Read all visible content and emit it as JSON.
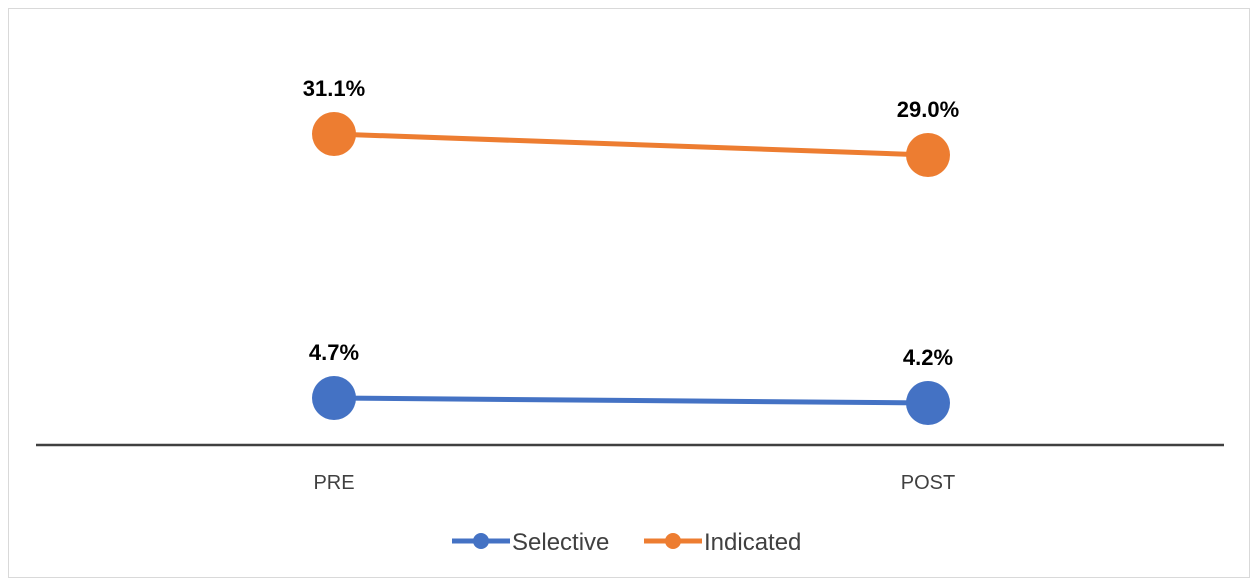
{
  "chart_data": {
    "type": "line",
    "title": "",
    "xlabel": "",
    "ylabel": "",
    "categories": [
      "PRE",
      "POST"
    ],
    "ylim": [
      0,
      40
    ],
    "grid": false,
    "legend_position": "bottom",
    "series": [
      {
        "name": "Selective",
        "color": "#4472c4",
        "values": [
          4.7,
          4.2
        ],
        "labels": [
          "4.7%",
          "4.2%"
        ]
      },
      {
        "name": "Indicated",
        "color": "#ed7d31",
        "values": [
          31.1,
          29.0
        ],
        "labels": [
          "31.1%",
          "29.0%"
        ]
      }
    ]
  }
}
